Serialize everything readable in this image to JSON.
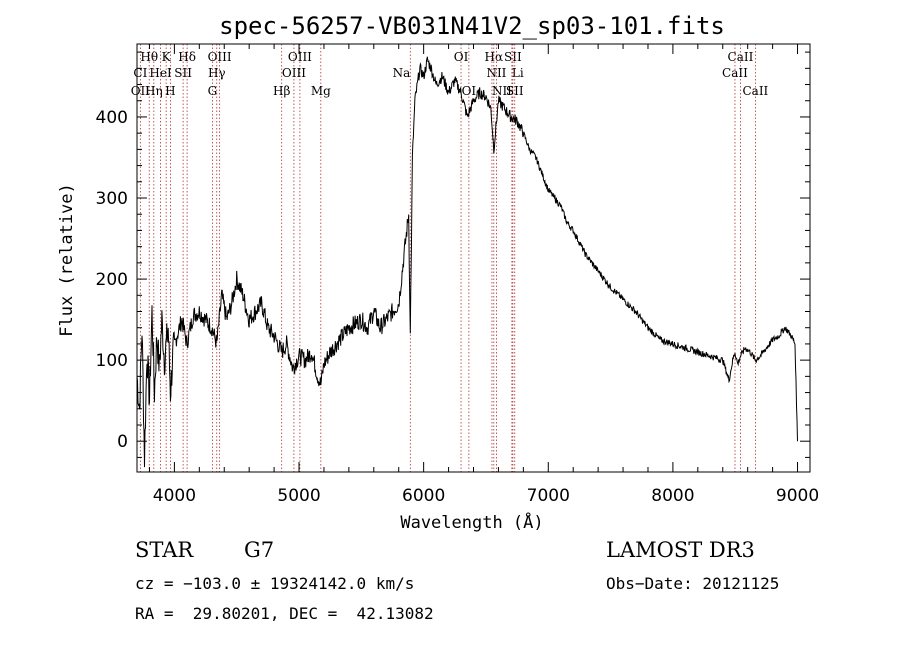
{
  "chart_data": {
    "type": "line",
    "title": "spec-56257-VB031N41V2_sp03-101.fits",
    "xlabel": "Wavelength (Å)",
    "ylabel": "Flux (relative)",
    "xlim": [
      3700,
      9100
    ],
    "ylim": [
      -38,
      490
    ],
    "xticks": [
      4000,
      5000,
      6000,
      7000,
      8000,
      9000
    ],
    "yticks": [
      0,
      100,
      200,
      300,
      400
    ],
    "grid": false,
    "series": [
      {
        "x": [
          3700,
          3720,
          3740,
          3760,
          3780,
          3800,
          3820,
          3840,
          3860,
          3880,
          3900,
          3920,
          3935,
          3950,
          3968,
          3990,
          4020,
          4060,
          4100,
          4150,
          4200,
          4250,
          4300,
          4340,
          4380,
          4420,
          4460,
          4500,
          4550,
          4600,
          4650,
          4700,
          4750,
          4800,
          4861,
          4900,
          4950,
          5000,
          5050,
          5100,
          5150,
          5175,
          5200,
          5250,
          5300,
          5350,
          5400,
          5450,
          5500,
          5550,
          5600,
          5650,
          5700,
          5750,
          5800,
          5850,
          5880,
          5893,
          5910,
          5930,
          5950,
          5970,
          6000,
          6030,
          6060,
          6100,
          6150,
          6200,
          6250,
          6300,
          6350,
          6400,
          6450,
          6500,
          6540,
          6563,
          6600,
          6650,
          6700,
          6750,
          6800,
          6850,
          6900,
          6950,
          7000,
          7050,
          7100,
          7150,
          7200,
          7300,
          7400,
          7500,
          7600,
          7700,
          7800,
          7900,
          8000,
          8100,
          8200,
          8300,
          8400,
          8450,
          8480,
          8498,
          8520,
          8542,
          8580,
          8620,
          8662,
          8700,
          8750,
          8800,
          8850,
          8900,
          8950,
          8980,
          9000
        ],
        "y": [
          80,
          40,
          140,
          -20,
          110,
          50,
          160,
          60,
          130,
          90,
          150,
          100,
          120,
          140,
          60,
          110,
          130,
          150,
          120,
          155,
          160,
          150,
          140,
          120,
          180,
          150,
          170,
          200,
          180,
          150,
          160,
          170,
          140,
          130,
          110,
          120,
          90,
          105,
          100,
          110,
          80,
          70,
          95,
          110,
          120,
          130,
          140,
          145,
          150,
          140,
          160,
          140,
          150,
          160,
          170,
          240,
          280,
          130,
          350,
          420,
          440,
          460,
          450,
          470,
          460,
          440,
          450,
          430,
          445,
          430,
          400,
          420,
          430,
          425,
          410,
          360,
          420,
          410,
          400,
          395,
          380,
          360,
          350,
          330,
          310,
          300,
          290,
          270,
          260,
          230,
          210,
          190,
          175,
          160,
          140,
          125,
          120,
          115,
          110,
          105,
          100,
          75,
          100,
          110,
          95,
          105,
          115,
          110,
          100,
          105,
          115,
          125,
          130,
          140,
          130,
          120,
          0
        ]
      }
    ],
    "line_markers": [
      {
        "label": "Hθ",
        "x": 3798,
        "row": 0,
        "anchor": "middle"
      },
      {
        "label": "K",
        "x": 3934,
        "row": 0,
        "anchor": "middle"
      },
      {
        "label": "Hδ",
        "x": 4102,
        "row": 0,
        "anchor": "middle"
      },
      {
        "label": "OIII",
        "x": 4363,
        "row": 0,
        "anchor": "middle"
      },
      {
        "label": "OIII",
        "x": 5007,
        "row": 0,
        "anchor": "middle"
      },
      {
        "label": "OI",
        "x": 6300,
        "row": 0,
        "anchor": "middle"
      },
      {
        "label": "Hα",
        "x": 6563,
        "row": 0,
        "anchor": "middle"
      },
      {
        "label": "SII",
        "x": 6716,
        "row": 0,
        "anchor": "middle"
      },
      {
        "label": "CaII",
        "x": 8542,
        "row": 0,
        "anchor": "middle"
      },
      {
        "label": "CI",
        "x": 3727,
        "row": 1,
        "anchor": "middle"
      },
      {
        "label": "HeI",
        "x": 3889,
        "row": 1,
        "anchor": "middle"
      },
      {
        "label": "SII",
        "x": 4070,
        "row": 1,
        "anchor": "middle"
      },
      {
        "label": "Hγ",
        "x": 4340,
        "row": 1,
        "anchor": "middle"
      },
      {
        "label": "OIII",
        "x": 4959,
        "row": 1,
        "anchor": "middle"
      },
      {
        "label": "Na",
        "x": 5893,
        "row": 1,
        "anchor": "end"
      },
      {
        "label": "NII",
        "x": 6584,
        "row": 1,
        "anchor": "middle"
      },
      {
        "label": "Li",
        "x": 6708,
        "row": 1,
        "anchor": "start"
      },
      {
        "label": "CaII",
        "x": 8498,
        "row": 1,
        "anchor": "middle"
      },
      {
        "label": "OII",
        "x": 3727,
        "row": 2,
        "anchor": "middle"
      },
      {
        "label": "Hη",
        "x": 3835,
        "row": 2,
        "anchor": "middle"
      },
      {
        "label": "H",
        "x": 3968,
        "row": 2,
        "anchor": "middle"
      },
      {
        "label": "G",
        "x": 4305,
        "row": 2,
        "anchor": "middle"
      },
      {
        "label": "Hβ",
        "x": 4861,
        "row": 2,
        "anchor": "middle"
      },
      {
        "label": "Mg",
        "x": 5175,
        "row": 2,
        "anchor": "middle"
      },
      {
        "label": "OI",
        "x": 6363,
        "row": 2,
        "anchor": "middle"
      },
      {
        "label": "NII",
        "x": 6548,
        "row": 2,
        "anchor": "start"
      },
      {
        "label": "SII",
        "x": 6731,
        "row": 2,
        "anchor": "middle"
      },
      {
        "label": "CaII",
        "x": 8662,
        "row": 2,
        "anchor": "middle"
      }
    ]
  },
  "info": {
    "class_label": "STAR",
    "subclass": "G7",
    "survey": "LAMOST DR3",
    "cz": "cz = −103.0 ± 19324142.0 km/s",
    "obs_date": "Obs−Date: 20121125",
    "coords": "RA =  29.80201, DEC =  42.13082"
  }
}
